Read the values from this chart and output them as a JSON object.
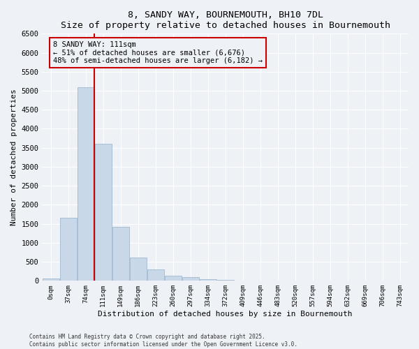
{
  "title1": "8, SANDY WAY, BOURNEMOUTH, BH10 7DL",
  "title2": "Size of property relative to detached houses in Bournemouth",
  "xlabel": "Distribution of detached houses by size in Bournemouth",
  "ylabel": "Number of detached properties",
  "categories": [
    "0sqm",
    "37sqm",
    "74sqm",
    "111sqm",
    "149sqm",
    "186sqm",
    "223sqm",
    "260sqm",
    "297sqm",
    "334sqm",
    "372sqm",
    "409sqm",
    "446sqm",
    "483sqm",
    "520sqm",
    "557sqm",
    "594sqm",
    "632sqm",
    "669sqm",
    "706sqm",
    "743sqm"
  ],
  "values": [
    60,
    1650,
    5100,
    3600,
    1420,
    620,
    300,
    130,
    100,
    50,
    30,
    10,
    0,
    0,
    0,
    0,
    0,
    0,
    0,
    0,
    0
  ],
  "bar_color": "#c8d8e8",
  "bar_edgecolor": "#a0b8d0",
  "vline_x_idx": 2.5,
  "vline_color": "#cc0000",
  "annotation_text": "8 SANDY WAY: 111sqm\n← 51% of detached houses are smaller (6,676)\n48% of semi-detached houses are larger (6,182) →",
  "annotation_box_color": "#cc0000",
  "ylim": [
    0,
    6500
  ],
  "yticks": [
    0,
    500,
    1000,
    1500,
    2000,
    2500,
    3000,
    3500,
    4000,
    4500,
    5000,
    5500,
    6000,
    6500
  ],
  "bg_color": "#eef2f7",
  "grid_color": "#ffffff",
  "footer1": "Contains HM Land Registry data © Crown copyright and database right 2025.",
  "footer2": "Contains public sector information licensed under the Open Government Licence v3.0."
}
